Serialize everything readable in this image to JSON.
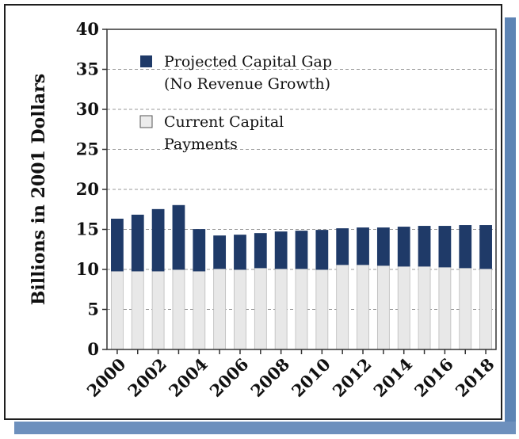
{
  "chart_data": {
    "type": "bar",
    "stacked": true,
    "title": "",
    "xlabel": "",
    "ylabel": "Billions in 2001 Dollars",
    "ylim": [
      0,
      40
    ],
    "yticks": [
      0,
      5,
      10,
      15,
      20,
      25,
      30,
      35,
      40
    ],
    "grid": true,
    "legend_position": "top-left",
    "categories": [
      "2000",
      "2001",
      "2002",
      "2003",
      "2004",
      "2005",
      "2006",
      "2007",
      "2008",
      "2009",
      "2010",
      "2011",
      "2012",
      "2013",
      "2014",
      "2015",
      "2016",
      "2017",
      "2018"
    ],
    "xtick_labels": [
      "2000",
      "2002",
      "2004",
      "2006",
      "2008",
      "2010",
      "2012",
      "2014",
      "2016",
      "2018"
    ],
    "series": [
      {
        "name": "Current Capital Payments",
        "color": "#e8e8e8",
        "values": [
          9.8,
          9.8,
          9.8,
          10.0,
          9.8,
          10.1,
          10.0,
          10.2,
          10.1,
          10.1,
          10.0,
          10.6,
          10.6,
          10.5,
          10.4,
          10.4,
          10.3,
          10.2,
          10.1
        ]
      },
      {
        "name": "Projected Capital Gap (No Revenue Growth)",
        "color": "#1f3a68",
        "values": [
          6.5,
          7.0,
          7.7,
          8.0,
          5.2,
          4.1,
          4.3,
          4.3,
          4.6,
          4.7,
          4.9,
          4.5,
          4.6,
          4.7,
          4.9,
          5.0,
          5.1,
          5.3,
          5.4
        ]
      }
    ]
  },
  "legend": {
    "gap_line1": "Projected Capital Gap",
    "gap_line2": "(No Revenue Growth)",
    "current_line1": "Current Capital",
    "current_line2": "Payments"
  }
}
